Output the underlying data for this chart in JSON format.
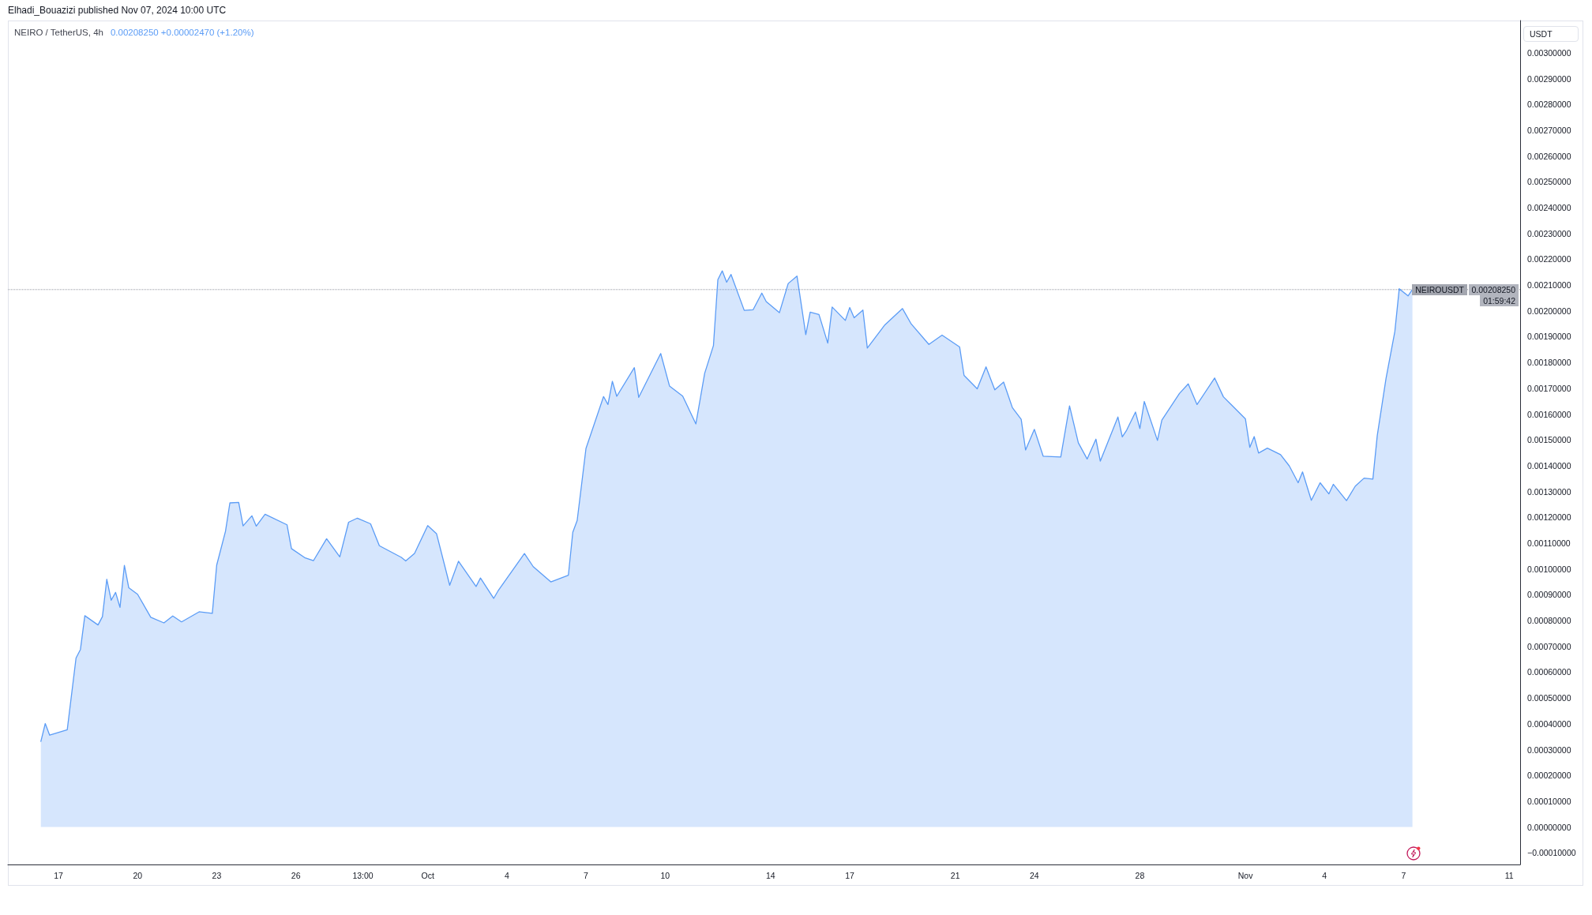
{
  "chart_data": {
    "type": "area",
    "title": "NEIRO / TetherUS, 4h",
    "subtitle": "0.00208250 +0.00002470 (+1.20%)",
    "ylabel": "USDT",
    "annotations": [
      "Elhadi_Bouazizi published Nov 07, 2024 10:00 UTC",
      "0.00208250",
      "01:59:42"
    ],
    "x": [
      "2024-09-16T08:00",
      "2024-09-16T12:00",
      "2024-09-16T16:00",
      "2024-09-17T08:00",
      "2024-09-17T16:00",
      "2024-09-17T20:00",
      "2024-09-18T00:00",
      "2024-09-18T12:00",
      "2024-09-18T16:00",
      "2024-09-18T20:00",
      "2024-09-19T00:00",
      "2024-09-19T04:00",
      "2024-09-19T08:00",
      "2024-09-19T12:00",
      "2024-09-19T16:00",
      "2024-09-20T00:00",
      "2024-09-20T12:00",
      "2024-09-21T00:00",
      "2024-09-21T08:00",
      "2024-09-21T16:00",
      "2024-09-22T08:00",
      "2024-09-22T20:00",
      "2024-09-23T00:00",
      "2024-09-23T08:00",
      "2024-09-23T12:00",
      "2024-09-23T20:00",
      "2024-09-24T00:00",
      "2024-09-24T08:00",
      "2024-09-24T12:00",
      "2024-09-24T20:00",
      "2024-09-25T16:00",
      "2024-09-25T20:00",
      "2024-09-26T08:00",
      "2024-09-26T16:00",
      "2024-09-27T04:00",
      "2024-09-27T16:00",
      "2024-09-28T00:00",
      "2024-09-28T08:00",
      "2024-09-28T20:00",
      "2024-09-29T04:00",
      "2024-09-30T00:00",
      "2024-09-30T04:00",
      "2024-09-30T12:00",
      "2024-10-01T00:00",
      "2024-10-01T08:00",
      "2024-10-01T20:00",
      "2024-10-02T04:00",
      "2024-10-02T20:00",
      "2024-10-03T00:00",
      "2024-10-03T12:00",
      "2024-10-03T16:00",
      "2024-10-04T16:00",
      "2024-10-05T00:00",
      "2024-10-05T16:00",
      "2024-10-06T08:00",
      "2024-10-06T12:00",
      "2024-10-06T16:00",
      "2024-10-06T20:00",
      "2024-10-07T00:00",
      "2024-10-07T16:00",
      "2024-10-07T20:00",
      "2024-10-08T00:00",
      "2024-10-08T04:00",
      "2024-10-08T20:00",
      "2024-10-09T00:00",
      "2024-10-09T20:00",
      "2024-10-10T04:00",
      "2024-10-10T16:00",
      "2024-10-11T04:00",
      "2024-10-11T12:00",
      "2024-10-11T20:00",
      "2024-10-12T00:00",
      "2024-10-12T04:00",
      "2024-10-12T08:00",
      "2024-10-12T12:00",
      "2024-10-13T00:00",
      "2024-10-13T08:00",
      "2024-10-13T16:00",
      "2024-10-13T20:00",
      "2024-10-14T08:00",
      "2024-10-14T16:00",
      "2024-10-15T00:00",
      "2024-10-15T08:00",
      "2024-10-15T12:00",
      "2024-10-15T20:00",
      "2024-10-16T04:00",
      "2024-10-16T08:00",
      "2024-10-16T20:00",
      "2024-10-17T00:00",
      "2024-10-17T04:00",
      "2024-10-17T12:00",
      "2024-10-17T16:00",
      "2024-10-18T08:00",
      "2024-10-19T00:00",
      "2024-10-19T08:00",
      "2024-10-20T00:00",
      "2024-10-20T12:00",
      "2024-10-21T04:00",
      "2024-10-21T08:00",
      "2024-10-21T20:00",
      "2024-10-22T04:00",
      "2024-10-22T12:00",
      "2024-10-22T20:00",
      "2024-10-23T04:00",
      "2024-10-23T12:00",
      "2024-10-23T16:00",
      "2024-10-24T00:00",
      "2024-10-24T08:00",
      "2024-10-25T00:00",
      "2024-10-25T08:00",
      "2024-10-25T16:00",
      "2024-10-26T00:00",
      "2024-10-26T08:00",
      "2024-10-26T12:00",
      "2024-10-27T04:00",
      "2024-10-27T08:00",
      "2024-10-27T12:00",
      "2024-10-27T20:00",
      "2024-10-28T00:00",
      "2024-10-28T04:00",
      "2024-10-28T16:00",
      "2024-10-28T20:00",
      "2024-10-29T12:00",
      "2024-10-29T20:00",
      "2024-10-30T04:00",
      "2024-10-30T20:00",
      "2024-10-31T04:00",
      "2024-10-31T12:00",
      "2024-11-01T00:00",
      "2024-11-01T04:00",
      "2024-11-01T08:00",
      "2024-11-01T12:00",
      "2024-11-01T20:00",
      "2024-11-02T08:00",
      "2024-11-02T16:00",
      "2024-11-03T00:00",
      "2024-11-03T04:00",
      "2024-11-03T12:00",
      "2024-11-03T20:00",
      "2024-11-04T04:00",
      "2024-11-04T08:00",
      "2024-11-04T20:00",
      "2024-11-05T04:00",
      "2024-11-05T12:00",
      "2024-11-05T20:00",
      "2024-11-06T00:00",
      "2024-11-06T08:00",
      "2024-11-06T16:00",
      "2024-11-06T20:00",
      "2024-11-07T04:00",
      "2024-11-07T08:00"
    ],
    "values": [
      0.000332,
      0.000401,
      0.000356,
      0.000377,
      0.000655,
      0.000688,
      0.000819,
      0.000783,
      0.000815,
      0.00096,
      0.000879,
      0.000909,
      0.000851,
      0.001014,
      0.000927,
      0.000902,
      0.000813,
      0.000791,
      0.000818,
      0.000795,
      0.000834,
      0.000828,
      0.001015,
      0.001146,
      0.001256,
      0.001258,
      0.001167,
      0.001206,
      0.001166,
      0.001212,
      0.001171,
      0.001079,
      0.001044,
      0.001032,
      0.001117,
      0.001047,
      0.001181,
      0.001197,
      0.001175,
      0.00109,
      0.001045,
      0.001031,
      0.00106,
      0.001168,
      0.001137,
      0.000937,
      0.00103,
      0.000932,
      0.000965,
      0.000886,
      0.000915,
      0.00106,
      0.001009,
      0.00095,
      0.000976,
      0.001142,
      0.001188,
      0.001327,
      0.001467,
      0.001668,
      0.001637,
      0.001727,
      0.001669,
      0.00178,
      0.001665,
      0.001835,
      0.001709,
      0.00167,
      0.001562,
      0.001758,
      0.001866,
      0.002121,
      0.002155,
      0.002111,
      0.002141,
      0.002002,
      0.002004,
      0.002069,
      0.002036,
      0.001993,
      0.002106,
      0.002135,
      0.001908,
      0.001995,
      0.001986,
      0.001875,
      0.002015,
      0.001963,
      0.002013,
      0.001973,
      0.002003,
      0.001856,
      0.001946,
      0.002009,
      0.001949,
      0.00187,
      0.001906,
      0.00186,
      0.00175,
      0.001698,
      0.001783,
      0.001694,
      0.001724,
      0.001625,
      0.00158,
      0.001461,
      0.001541,
      0.001437,
      0.001434,
      0.001632,
      0.001489,
      0.001426,
      0.001503,
      0.001418,
      0.001589,
      0.001512,
      0.001538,
      0.001608,
      0.001544,
      0.001649,
      0.001498,
      0.001577,
      0.00168,
      0.001717,
      0.001637,
      0.00174,
      0.001667,
      0.001633,
      0.001582,
      0.001471,
      0.001513,
      0.001449,
      0.001468,
      0.001443,
      0.001399,
      0.001334,
      0.001376,
      0.001266,
      0.001334,
      0.001291,
      0.001328,
      0.001265,
      0.001321,
      0.001352,
      0.001348,
      0.001517,
      0.001739,
      0.00192,
      0.002086,
      0.002058,
      0.002083
    ],
    "color": "#5b9cf6",
    "xlim": [
      "2024-09-15T02:00",
      "2024-11-11T10:00"
    ],
    "xticks": [
      {
        "value": "2024-09-17",
        "label": "17"
      },
      {
        "value": "2024-09-20",
        "label": "20"
      },
      {
        "value": "2024-09-23",
        "label": "23"
      },
      {
        "value": "2024-09-26",
        "label": "26"
      },
      {
        "value": "2024-09-28T13:00",
        "label": "13:00"
      },
      {
        "value": "2024-10-01",
        "label": "Oct"
      },
      {
        "value": "2024-10-04",
        "label": "4"
      },
      {
        "value": "2024-10-07",
        "label": "7"
      },
      {
        "value": "2024-10-10",
        "label": "10"
      },
      {
        "value": "2024-10-14",
        "label": "14"
      },
      {
        "value": "2024-10-17",
        "label": "17"
      },
      {
        "value": "2024-10-21",
        "label": "21"
      },
      {
        "value": "2024-10-24",
        "label": "24"
      },
      {
        "value": "2024-10-28",
        "label": "28"
      },
      {
        "value": "2024-11-01",
        "label": "Nov"
      },
      {
        "value": "2024-11-04",
        "label": "4"
      },
      {
        "value": "2024-11-07",
        "label": "7"
      },
      {
        "value": "2024-11-11",
        "label": "11"
      }
    ],
    "ylim": [
      -0.000145,
      0.003125
    ],
    "yticks": [
      {
        "value": -0.0001,
        "label": "−0.00010000"
      },
      {
        "value": 0,
        "label": "0.00000000"
      },
      {
        "value": 0.0001,
        "label": "0.00010000"
      },
      {
        "value": 0.0002,
        "label": "0.00020000"
      },
      {
        "value": 0.0003,
        "label": "0.00030000"
      },
      {
        "value": 0.0004,
        "label": "0.00040000"
      },
      {
        "value": 0.0005,
        "label": "0.00050000"
      },
      {
        "value": 0.0006,
        "label": "0.00060000"
      },
      {
        "value": 0.0007,
        "label": "0.00070000"
      },
      {
        "value": 0.0008,
        "label": "0.00080000"
      },
      {
        "value": 0.0009,
        "label": "0.00090000"
      },
      {
        "value": 0.001,
        "label": "0.00100000"
      },
      {
        "value": 0.0011,
        "label": "0.00110000"
      },
      {
        "value": 0.0012,
        "label": "0.00120000"
      },
      {
        "value": 0.0013,
        "label": "0.00130000"
      },
      {
        "value": 0.0014,
        "label": "0.00140000"
      },
      {
        "value": 0.0015,
        "label": "0.00150000"
      },
      {
        "value": 0.0016,
        "label": "0.00160000"
      },
      {
        "value": 0.0017,
        "label": "0.00170000"
      },
      {
        "value": 0.0018,
        "label": "0.00180000"
      },
      {
        "value": 0.0019,
        "label": "0.00190000"
      },
      {
        "value": 0.002,
        "label": "0.00200000"
      },
      {
        "value": 0.0021,
        "label": "0.00210000"
      },
      {
        "value": 0.0022,
        "label": "0.00220000"
      },
      {
        "value": 0.0023,
        "label": "0.00230000"
      },
      {
        "value": 0.0024,
        "label": "0.00240000"
      },
      {
        "value": 0.0025,
        "label": "0.00250000"
      },
      {
        "value": 0.0026,
        "label": "0.00260000"
      },
      {
        "value": 0.0027,
        "label": "0.00270000"
      },
      {
        "value": 0.0028,
        "label": "0.00280000"
      },
      {
        "value": 0.0029,
        "label": "0.00290000"
      },
      {
        "value": 0.003,
        "label": "0.00300000"
      }
    ],
    "ref_lines": [
      {
        "axis": "y",
        "value": 0.0020825,
        "label": "NEIROUSDT",
        "color": "#9598a1",
        "line_style": "dotted"
      }
    ]
  }
}
